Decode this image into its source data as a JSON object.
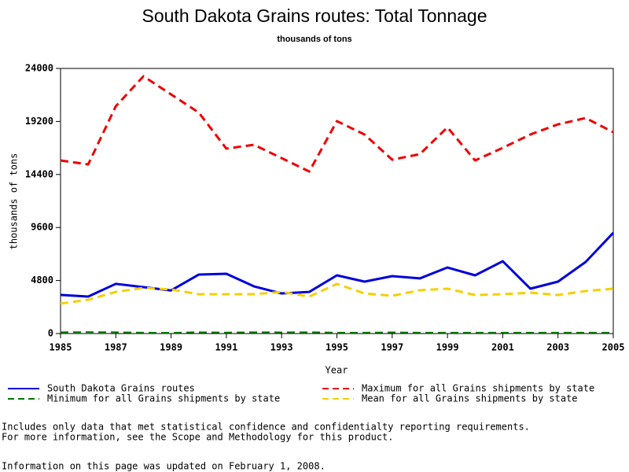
{
  "chart_data": {
    "type": "line",
    "title": "South Dakota Grains routes: Total Tonnage",
    "subtitle": "thousands of tons",
    "x_label": "Year",
    "y_label": "thousands of tons",
    "x": [
      1985,
      1986,
      1987,
      1988,
      1989,
      1990,
      1991,
      1992,
      1993,
      1994,
      1995,
      1996,
      1997,
      1998,
      1999,
      2000,
      2001,
      2002,
      2003,
      2004,
      2005
    ],
    "xlim": [
      1985,
      2005
    ],
    "xticks": [
      1985,
      1987,
      1989,
      1991,
      1993,
      1995,
      1997,
      1999,
      2001,
      2003,
      2005
    ],
    "ylim": [
      0,
      24000
    ],
    "yticks": [
      0,
      4800,
      9600,
      14400,
      19200,
      24000
    ],
    "series": [
      {
        "name": "South Dakota Grains routes",
        "color": "#0000dd",
        "dashed": false,
        "values": [
          3500,
          3350,
          4500,
          4200,
          3900,
          5340,
          5410,
          4270,
          3630,
          3770,
          5270,
          4700,
          5200,
          4990,
          5980,
          5270,
          6550,
          4060,
          4700,
          6480,
          9120
        ]
      },
      {
        "name": "Maximum for all Grains shipments by state",
        "color": "#ee0000",
        "dashed": true,
        "values": [
          15670,
          15310,
          20580,
          23290,
          21650,
          20010,
          16740,
          17090,
          15880,
          14670,
          19230,
          18020,
          15740,
          16240,
          18660,
          15670,
          16810,
          18020,
          18940,
          19510,
          18230
        ]
      },
      {
        "name": "Minimum for all Grains shipments by state",
        "color": "#007700",
        "dashed": true,
        "values": [
          120,
          130,
          120,
          80,
          70,
          120,
          90,
          120,
          110,
          120,
          80,
          80,
          110,
          80,
          80,
          80,
          80,
          80,
          80,
          80,
          80
        ]
      },
      {
        "name": "Mean for all Grains shipments by state",
        "color": "#f5d000",
        "dashed": true,
        "values": [
          2710,
          3060,
          3770,
          4130,
          3990,
          3560,
          3560,
          3560,
          3770,
          3350,
          4490,
          3630,
          3420,
          3920,
          4060,
          3490,
          3560,
          3700,
          3490,
          3850,
          4060
        ]
      }
    ],
    "notes": [
      "Includes only data that met statistical confidence and confidentialty reporting requirements.",
      "For more information, see the Scope and Methodology for this product.",
      "Information on this page was updated on February 1, 2008."
    ]
  }
}
